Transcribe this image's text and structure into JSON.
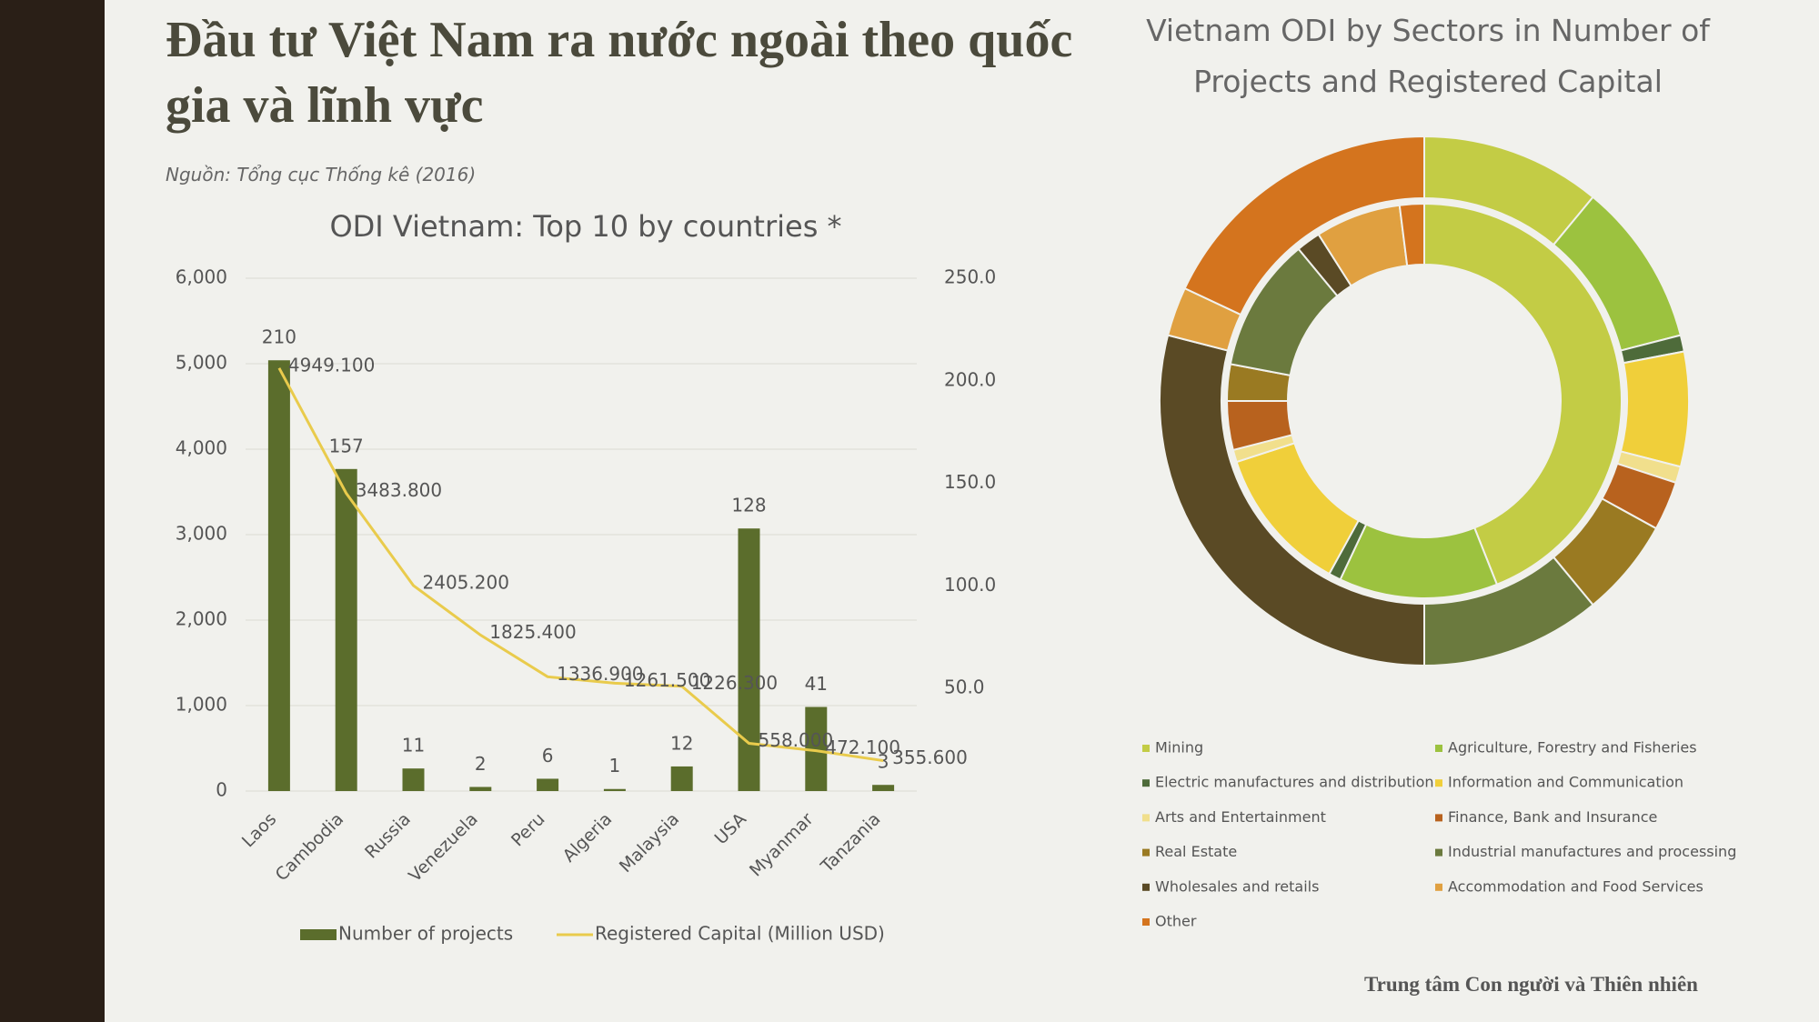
{
  "title": "Đầu tư Việt Nam ra nước ngoài theo quốc gia và lĩnh vực",
  "source": "Nguồn: Tổng cục Thống kê (2016)",
  "footer": "Trung tâm Con người và Thiên nhiên",
  "chart_data": [
    {
      "type": "bar",
      "title": "ODI Vietnam: Top 10 by countries *",
      "categories": [
        "Laos",
        "Cambodia",
        "Russia",
        "Venezuela",
        "Peru",
        "Algeria",
        "Malaysia",
        "USA",
        "Myanmar",
        "Tanzania"
      ],
      "series": [
        {
          "name": "Number of projects",
          "type": "bar",
          "axis": "y2",
          "color": "#5b6d2c",
          "values": [
            210,
            157,
            11,
            2,
            6,
            1,
            12,
            128,
            41,
            3
          ]
        },
        {
          "name": "Registered Capital (Million USD)",
          "type": "line",
          "color": "#e9cb4c",
          "values": [
            4949.1,
            3483.8,
            2405.2,
            1825.4,
            1336.9,
            1261.5,
            1226.3,
            558.0,
            472.1,
            355.6
          ],
          "value_labels": [
            "4949.100",
            "3483.800",
            "2405.200",
            "1825.400",
            "1336.900",
            "1261.500",
            "1226.300",
            "558.000",
            "472.100",
            "355.600"
          ]
        }
      ],
      "ylim": [
        0,
        6000
      ],
      "yticks": [
        0,
        {
          "value": 1000,
          "label": "1,000"
        },
        {
          "value": 2000,
          "label": "2,000"
        },
        {
          "value": 3000,
          "label": "3,000"
        },
        {
          "value": 4000,
          "label": "4,000"
        },
        {
          "value": 5000,
          "label": "5,000"
        },
        {
          "value": 6000,
          "label": "6,000"
        }
      ],
      "y2lim": [
        0,
        250
      ],
      "y2ticks": [
        {
          "value": 50,
          "label": "50.0"
        },
        {
          "value": 100,
          "label": "100.0"
        },
        {
          "value": 150,
          "label": "150.0"
        },
        {
          "value": 200,
          "label": "200.0"
        },
        {
          "value": 250,
          "label": "250.0"
        }
      ],
      "grid": true,
      "legend": "bottom"
    },
    {
      "type": "donut",
      "title": "Vietnam ODI by Sectors in Number of Projects and Registered Capital",
      "categories": [
        "Mining",
        "Agriculture, Forestry and Fisheries",
        "Electric manufactures and distribution",
        "Information and Communication",
        "Arts and Entertainment",
        "Finance, Bank and Insurance",
        "Real Estate",
        "Industrial manufactures and processing",
        "Wholesales and retails",
        "Accommodation and Food Services",
        "Other"
      ],
      "colors": [
        "#c3cc45",
        "#9cc23f",
        "#4e6b3a",
        "#f0cf3a",
        "#f1df8c",
        "#b8621e",
        "#9a7a22",
        "#6b7a3e",
        "#5a4a25",
        "#e0a040",
        "#d4741e"
      ],
      "series": [
        {
          "values": [
            11,
            10,
            1,
            7,
            1,
            3,
            6,
            11,
            29,
            3,
            18
          ]
        },
        {
          "values": [
            44,
            13,
            1,
            12,
            1,
            4,
            3,
            11,
            2,
            7,
            2
          ]
        }
      ],
      "legend": "bottom"
    }
  ]
}
